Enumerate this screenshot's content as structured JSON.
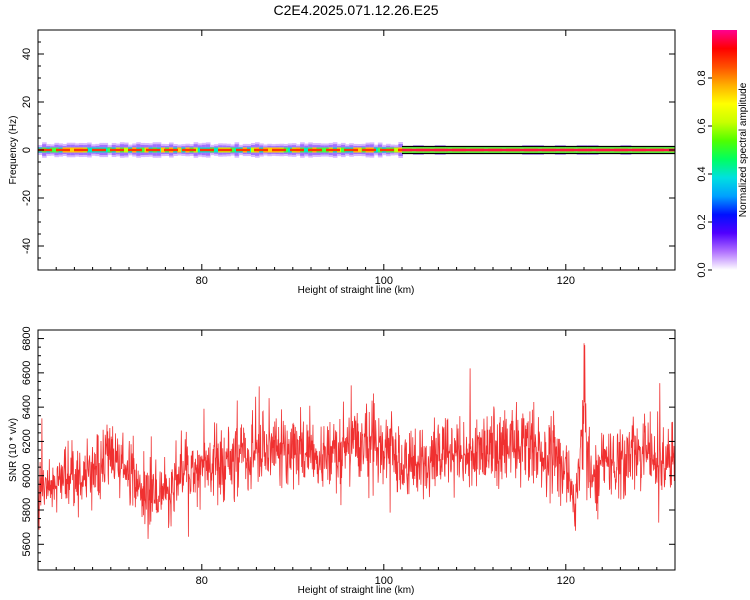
{
  "title": "C2E4.2025.071.12.26.E25",
  "chart_data": [
    {
      "type": "heatmap",
      "xlabel": "Height of straight line (km)",
      "ylabel": "Frequency (Hz)",
      "xlim": [
        62,
        132
      ],
      "ylim": [
        -50,
        50
      ],
      "xticks": [
        80,
        100,
        120
      ],
      "yticks": [
        -40,
        -20,
        0,
        20,
        40
      ],
      "trace": {
        "frequency_hz": 0,
        "segments": [
          {
            "x": [
              62,
              102
            ],
            "note": "broad band ~ +/-3 Hz, mixed amplitude"
          },
          {
            "x": [
              102,
              132
            ],
            "note": "narrow band, high amplitude"
          }
        ]
      },
      "colorbar": {
        "label": "Normalized spectral amplitude",
        "ticks": [
          0.0,
          0.2,
          0.4,
          0.6,
          0.8
        ],
        "range": [
          0,
          1
        ],
        "colors": [
          "#ffffff",
          "#b070ff",
          "#5000ff",
          "#0010ff",
          "#00a0ff",
          "#00e0e0",
          "#00ff60",
          "#50ff00",
          "#c8ff00",
          "#ffff00",
          "#ffb000",
          "#ff5000",
          "#ff0000",
          "#ff0090"
        ]
      }
    },
    {
      "type": "line",
      "xlabel": "Height of straight line (km)",
      "ylabel": "SNR (10 * v/v)",
      "xlim": [
        62,
        132
      ],
      "ylim": [
        5450,
        6850
      ],
      "xticks": [
        80,
        100,
        120
      ],
      "yticks": [
        5600,
        5800,
        6000,
        6200,
        6400,
        6600,
        6800
      ],
      "color": "#f03030",
      "envelope": {
        "x": [
          62,
          64,
          66,
          68,
          70,
          72,
          74,
          76,
          78,
          80,
          82,
          84,
          86,
          88,
          90,
          92,
          94,
          96,
          98,
          100,
          102,
          104,
          106,
          108,
          110,
          112,
          114,
          116,
          118,
          120,
          121,
          122,
          123,
          124,
          126,
          128,
          130,
          132
        ],
        "mean": [
          5920,
          5950,
          5980,
          6030,
          6100,
          6020,
          5850,
          5900,
          6000,
          6050,
          6080,
          6080,
          6150,
          6150,
          6150,
          6120,
          6080,
          6180,
          6200,
          6160,
          6050,
          6080,
          6120,
          6120,
          6150,
          6180,
          6150,
          6180,
          6150,
          6050,
          5800,
          6350,
          5900,
          6100,
          6100,
          6130,
          6100,
          6080
        ],
        "spread": [
          170,
          180,
          170,
          180,
          200,
          190,
          180,
          170,
          180,
          170,
          180,
          180,
          210,
          220,
          200,
          210,
          190,
          200,
          220,
          210,
          200,
          190,
          200,
          190,
          190,
          200,
          200,
          210,
          200,
          190,
          160,
          200,
          200,
          190,
          200,
          200,
          200,
          190
        ]
      }
    }
  ]
}
